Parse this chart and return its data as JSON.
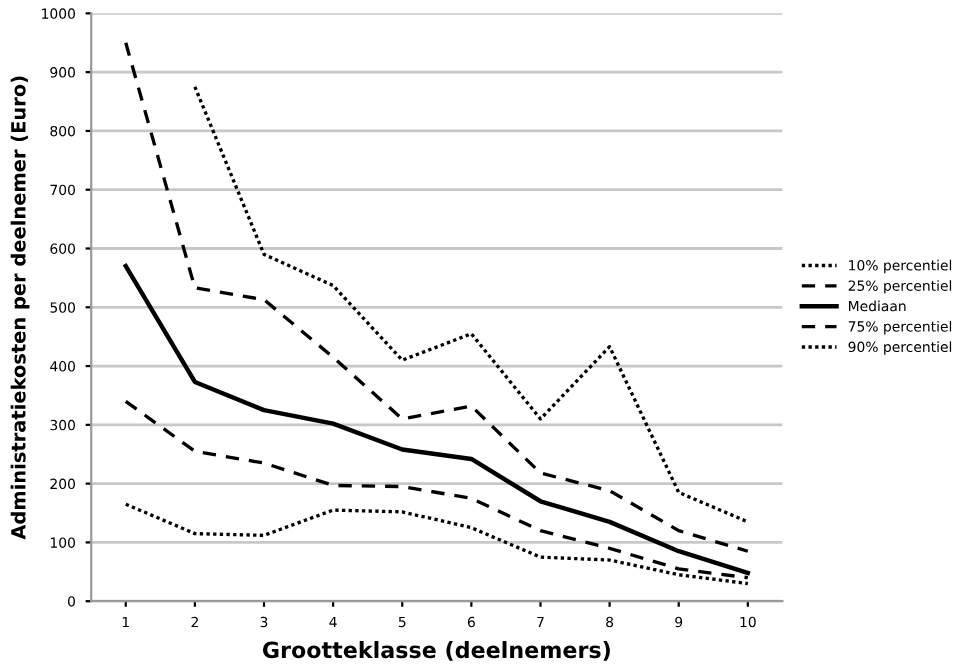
{
  "chart_data": {
    "type": "line",
    "xlabel": "Grootteklasse (deelnemers)",
    "ylabel": "Administratiekosten per deelnemer (Euro)",
    "categories": [
      "1",
      "2",
      "3",
      "4",
      "5",
      "6",
      "7",
      "8",
      "9",
      "10"
    ],
    "series": [
      {
        "name": "10% percentiel",
        "color": "#000000",
        "line_style": "dotted",
        "values": [
          165,
          115,
          112,
          155,
          152,
          125,
          75,
          70,
          45,
          30
        ]
      },
      {
        "name": "25% percentiel",
        "color": "#000000",
        "line_style": "dashed",
        "values": [
          340,
          255,
          235,
          197,
          195,
          175,
          120,
          90,
          55,
          40
        ]
      },
      {
        "name": "Mediaan",
        "color": "#000000",
        "line_style": "solid",
        "values": [
          570,
          373,
          325,
          302,
          258,
          242,
          170,
          135,
          85,
          48
        ]
      },
      {
        "name": "75% percentiel",
        "color": "#000000",
        "line_style": "dashed",
        "values": [
          950,
          533,
          513,
          415,
          310,
          332,
          218,
          188,
          120,
          85
        ]
      },
      {
        "name": "90% percentiel",
        "color": "#000000",
        "line_style": "dotted",
        "values": [
          null,
          875,
          590,
          537,
          410,
          455,
          310,
          433,
          185,
          135
        ]
      }
    ],
    "ylim": [
      0,
      1000
    ],
    "yticks": [
      0,
      100,
      200,
      300,
      400,
      500,
      600,
      700,
      800,
      900,
      1000
    ],
    "grid": "y",
    "legend": "right",
    "marker": "none"
  }
}
